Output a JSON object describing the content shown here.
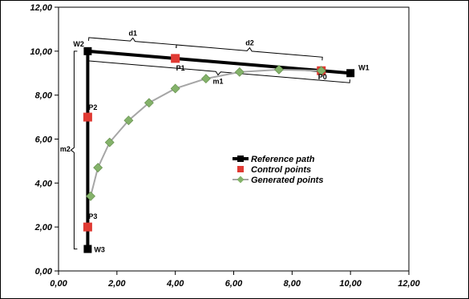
{
  "chart_data": {
    "type": "scatter",
    "xlim": [
      0,
      12
    ],
    "ylim": [
      0,
      12
    ],
    "x_ticks": [
      "0,00",
      "2,00",
      "4,00",
      "6,00",
      "8,00",
      "10,00",
      "12,00"
    ],
    "y_ticks": [
      "0,00",
      "2,00",
      "4,00",
      "6,00",
      "8,00",
      "10,00",
      "12,00"
    ],
    "grid": false,
    "legend_position": "center-right",
    "series": [
      {
        "name": "Reference path",
        "style": "line-square-markers",
        "color": "#000000",
        "points": [
          [
            10,
            9
          ],
          [
            1,
            10
          ],
          [
            1,
            1
          ]
        ]
      },
      {
        "name": "Control points",
        "style": "square-markers",
        "color": "#e03a33",
        "points": [
          [
            4,
            9.67
          ],
          [
            9,
            9.11
          ],
          [
            1,
            7
          ],
          [
            1,
            2
          ]
        ]
      },
      {
        "name": "Generated points",
        "style": "line-diamond-markers",
        "color": "#84b26a",
        "line_color": "#a6a6a6",
        "points": [
          [
            9,
            9.11
          ],
          [
            7.55,
            9.16
          ],
          [
            6.2,
            9.05
          ],
          [
            5.05,
            8.75
          ],
          [
            4,
            8.3
          ],
          [
            3.1,
            7.65
          ],
          [
            2.4,
            6.85
          ],
          [
            1.75,
            5.85
          ],
          [
            1.35,
            4.7
          ],
          [
            1.1,
            3.4
          ]
        ]
      }
    ],
    "point_labels": [
      {
        "text": "W1",
        "x": 10,
        "y": 9
      },
      {
        "text": "W2",
        "x": 1,
        "y": 10
      },
      {
        "text": "W3",
        "x": 1,
        "y": 1
      },
      {
        "text": "P0",
        "x": 9,
        "y": 9.11
      },
      {
        "text": "P1",
        "x": 4,
        "y": 9.67
      },
      {
        "text": "P2",
        "x": 1,
        "y": 7
      },
      {
        "text": "P3",
        "x": 1,
        "y": 2
      }
    ],
    "distance_labels": [
      {
        "text": "d1",
        "from": [
          1,
          10
        ],
        "to": [
          4,
          9.67
        ],
        "side": "above"
      },
      {
        "text": "d2",
        "from": [
          4,
          9.67
        ],
        "to": [
          9,
          9.11
        ],
        "side": "above"
      },
      {
        "text": "m1",
        "from": [
          1,
          10
        ],
        "to": [
          10,
          9
        ],
        "side": "below"
      },
      {
        "text": "m2",
        "from": [
          1,
          10
        ],
        "to": [
          1,
          1
        ],
        "side": "left"
      }
    ]
  }
}
